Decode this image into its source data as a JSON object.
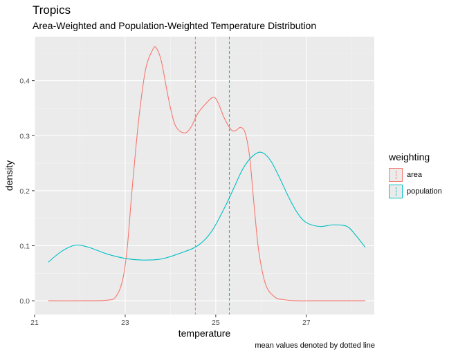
{
  "chart_data": {
    "type": "line",
    "title": "Tropics",
    "subtitle": "Area-Weighted and Population-Weighted Temperature Distribution",
    "xlabel": "temperature",
    "ylabel": "density",
    "caption": "mean values denoted by dotted line",
    "xlim": [
      21,
      28.5
    ],
    "ylim": [
      -0.025,
      0.48
    ],
    "xticks": [
      21,
      23,
      25,
      27
    ],
    "yticks": [
      0.0,
      0.1,
      0.2,
      0.3,
      0.4
    ],
    "ytick_labels": [
      "0.0",
      "0.1",
      "0.2",
      "0.3",
      "0.4"
    ],
    "grid": true,
    "legend_title": "weighting",
    "legend_position": "right",
    "series": [
      {
        "name": "area",
        "color": "#F8766D",
        "mean": 24.55,
        "x": [
          21.3,
          22.0,
          22.6,
          22.8,
          22.95,
          23.05,
          23.15,
          23.3,
          23.45,
          23.6,
          23.68,
          23.8,
          23.95,
          24.1,
          24.3,
          24.45,
          24.6,
          24.8,
          24.95,
          25.05,
          25.2,
          25.35,
          25.45,
          25.55,
          25.65,
          25.75,
          25.85,
          25.95,
          26.1,
          26.3,
          26.5,
          26.8,
          27.2,
          28.3
        ],
        "y": [
          0.0,
          0.0,
          0.001,
          0.008,
          0.04,
          0.1,
          0.2,
          0.33,
          0.42,
          0.455,
          0.46,
          0.435,
          0.37,
          0.32,
          0.305,
          0.315,
          0.34,
          0.36,
          0.37,
          0.36,
          0.33,
          0.31,
          0.31,
          0.315,
          0.305,
          0.26,
          0.17,
          0.09,
          0.03,
          0.007,
          0.002,
          0.0,
          0.0,
          0.0
        ]
      },
      {
        "name": "population",
        "color": "#00BFC4",
        "mean": 25.3,
        "x": [
          21.3,
          21.6,
          21.9,
          22.2,
          22.6,
          23.0,
          23.4,
          23.8,
          24.2,
          24.6,
          24.9,
          25.2,
          25.4,
          25.6,
          25.8,
          26.0,
          26.2,
          26.4,
          26.6,
          26.8,
          27.0,
          27.3,
          27.6,
          27.9,
          28.1,
          28.3
        ],
        "y": [
          0.07,
          0.09,
          0.101,
          0.097,
          0.085,
          0.077,
          0.074,
          0.076,
          0.086,
          0.1,
          0.125,
          0.17,
          0.205,
          0.24,
          0.262,
          0.27,
          0.256,
          0.225,
          0.19,
          0.16,
          0.142,
          0.135,
          0.138,
          0.135,
          0.118,
          0.097
        ]
      }
    ]
  }
}
